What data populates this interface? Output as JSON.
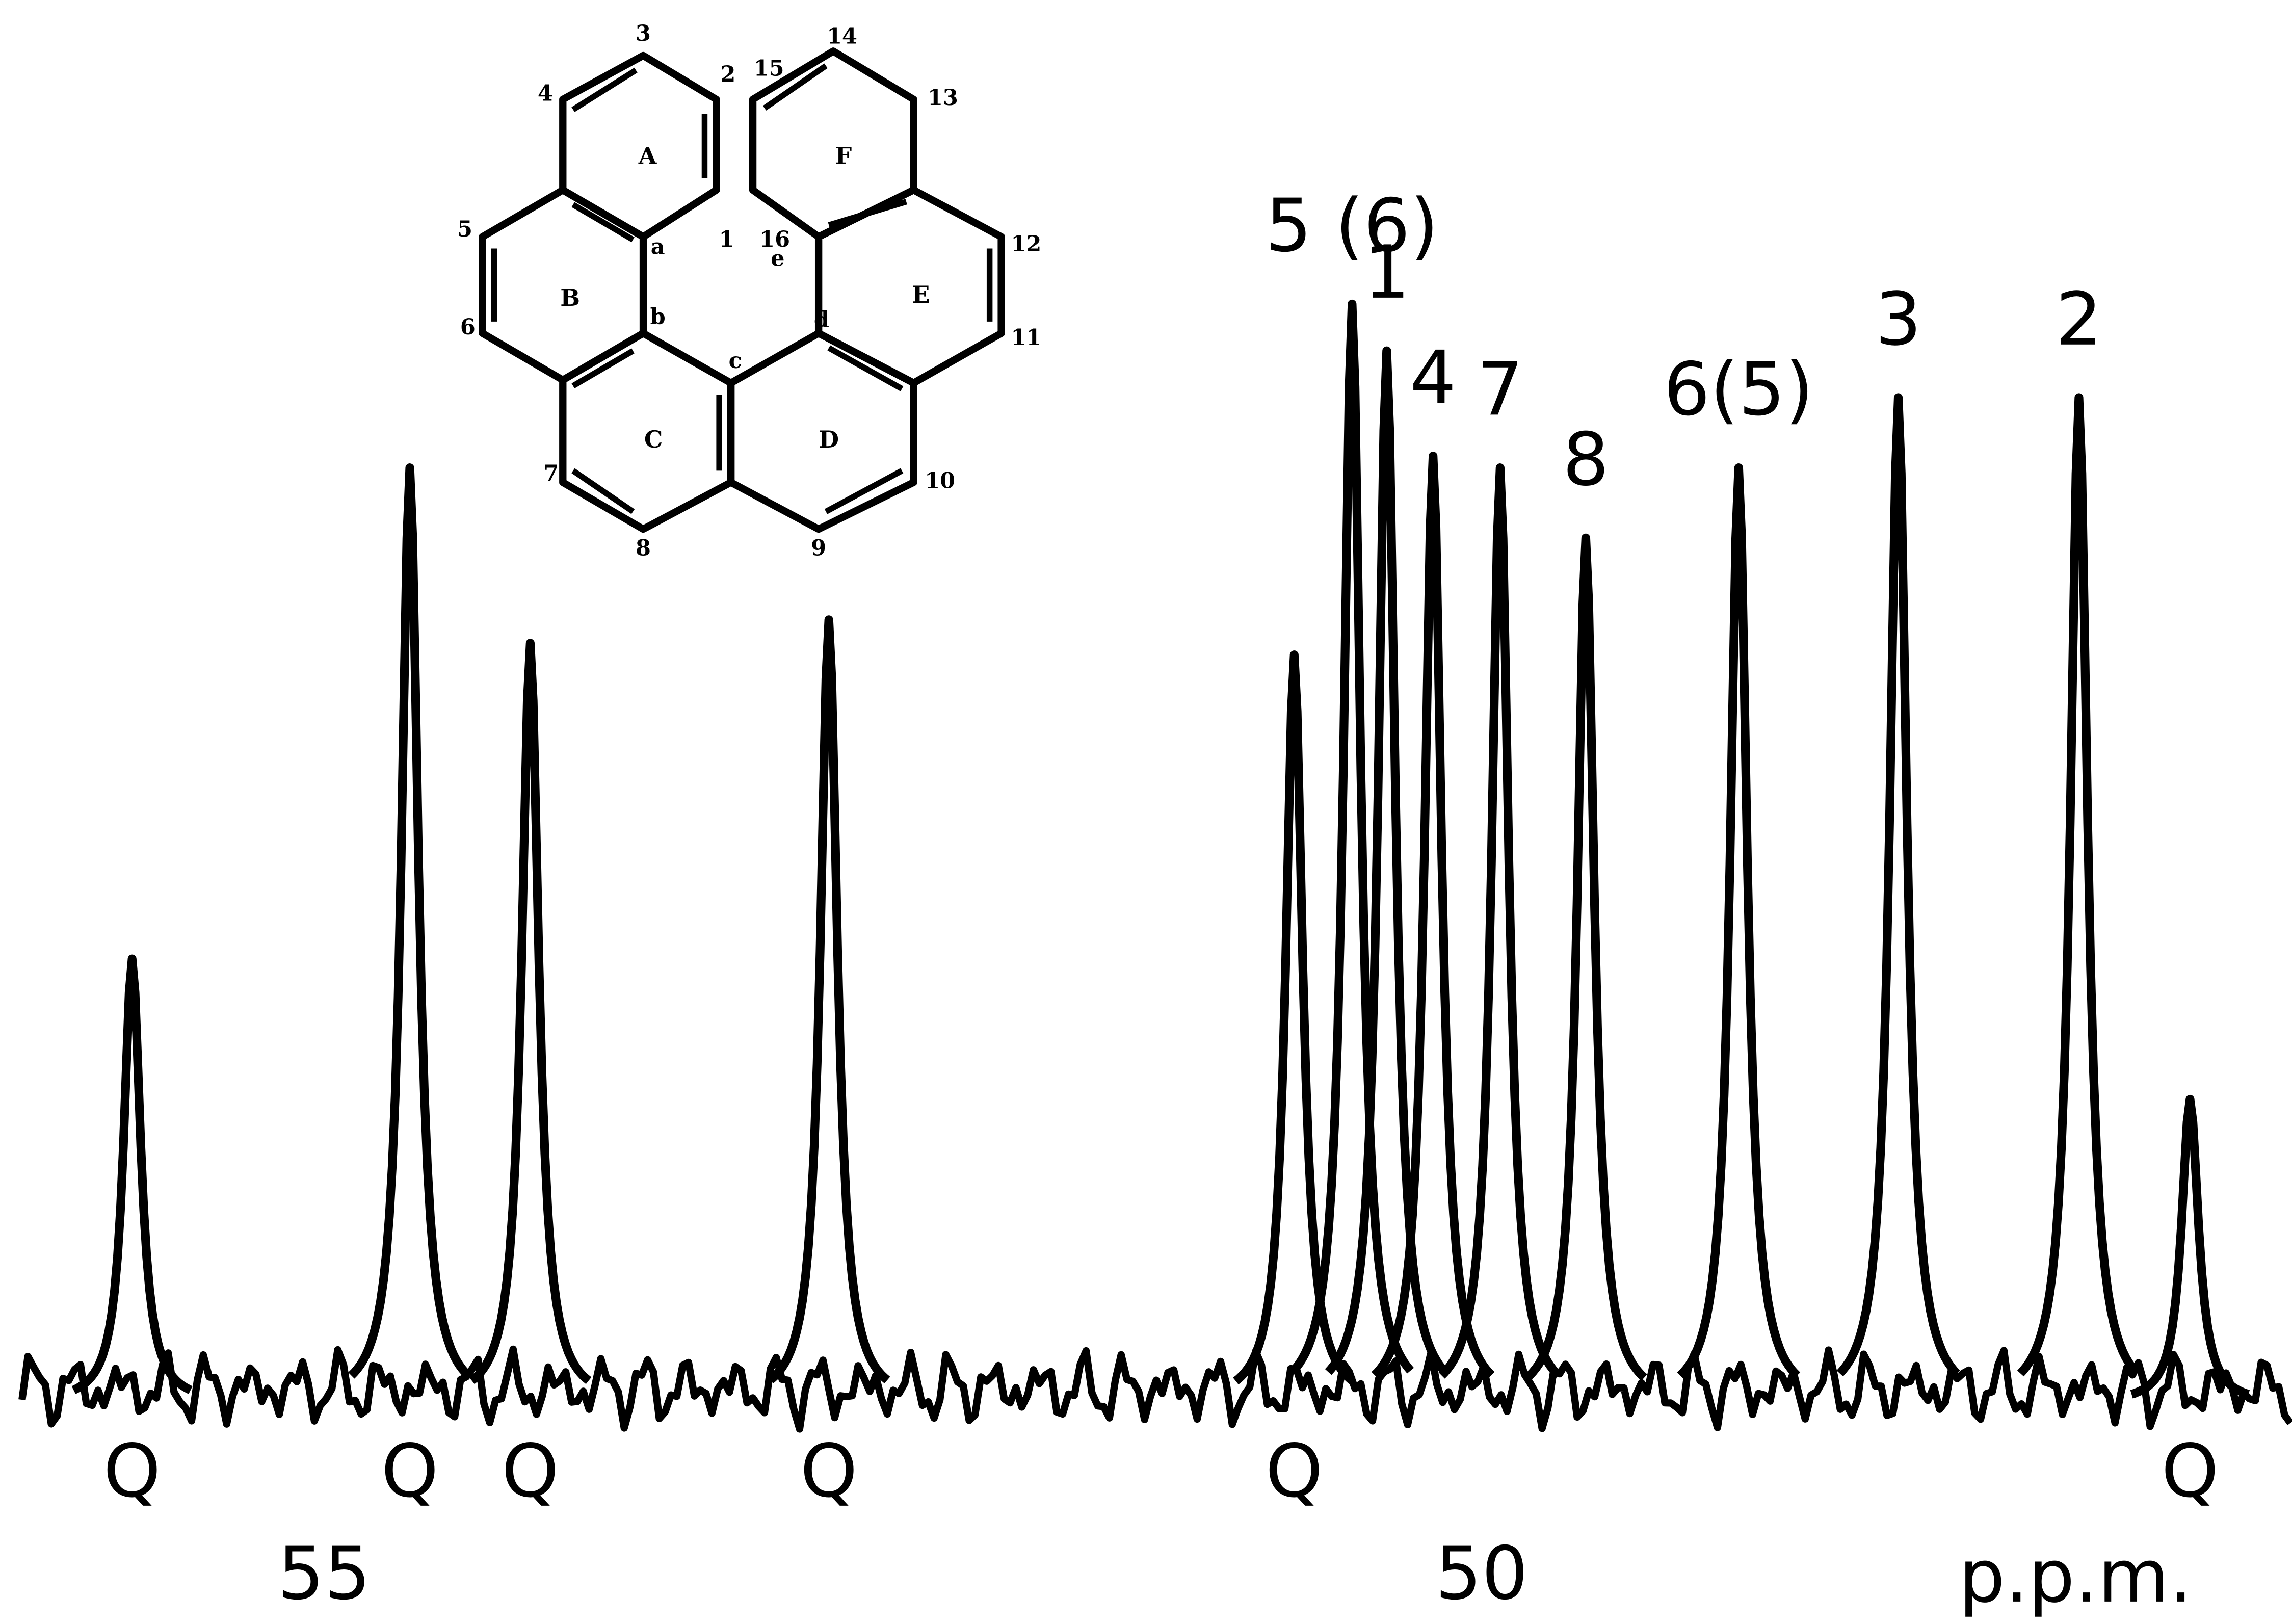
{
  "chart_data": {
    "type": "spectrum",
    "xlabel": "p.p.m.",
    "xlim": [
      56.4,
      46.5
    ],
    "xticks": [
      55,
      50
    ],
    "ylim": [
      0,
      100
    ],
    "color": "#000000",
    "peaks": {
      "x": [
        55.83,
        54.63,
        54.11,
        52.82,
        50.81,
        50.56,
        50.41,
        50.21,
        49.92,
        49.55,
        48.89,
        48.2,
        47.42,
        46.94
      ],
      "values": [
        38,
        80,
        65,
        67,
        64,
        94,
        90,
        81,
        80,
        74,
        80,
        86,
        86,
        26
      ],
      "labels": [
        "Q",
        "Q",
        "Q",
        "Q",
        "Q",
        "5 (6)",
        "1",
        "4",
        "7",
        "8",
        "6(5)",
        "3",
        "2",
        "Q"
      ]
    }
  },
  "structure": {
    "rings": [
      "A",
      "B",
      "C",
      "D",
      "E",
      "F"
    ],
    "atoms": [
      "1",
      "2",
      "3",
      "4",
      "5",
      "6",
      "7",
      "8",
      "9",
      "10",
      "11",
      "12",
      "13",
      "14",
      "15",
      "16"
    ],
    "junctions": [
      "a",
      "b",
      "c",
      "d",
      "e"
    ]
  }
}
